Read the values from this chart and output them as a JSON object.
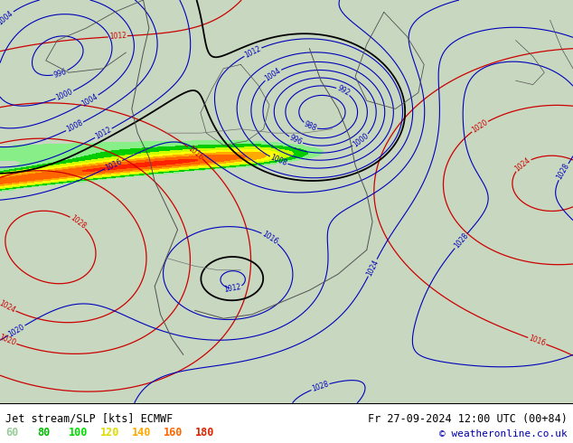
{
  "title_left": "Jet stream/SLP [kts] ECMWF",
  "title_right": "Fr 27-09-2024 12:00 UTC (00+84)",
  "copyright": "© weatheronline.co.uk",
  "legend_values": [
    60,
    80,
    100,
    120,
    140,
    160,
    180
  ],
  "legend_text_colors": [
    "#99cc99",
    "#00bb00",
    "#00dd00",
    "#dddd00",
    "#ffaa00",
    "#ff6600",
    "#dd2200"
  ],
  "background_color": "#c8d8c0",
  "figsize": [
    6.34,
    4.9
  ],
  "dpi": 100,
  "jet_levels": [
    60,
    80,
    100,
    120,
    140,
    160,
    180,
    200
  ],
  "jet_colors": [
    "#88ee88",
    "#00cc00",
    "#ccff00",
    "#ffff00",
    "#ffaa00",
    "#ff6600",
    "#ff2200"
  ]
}
